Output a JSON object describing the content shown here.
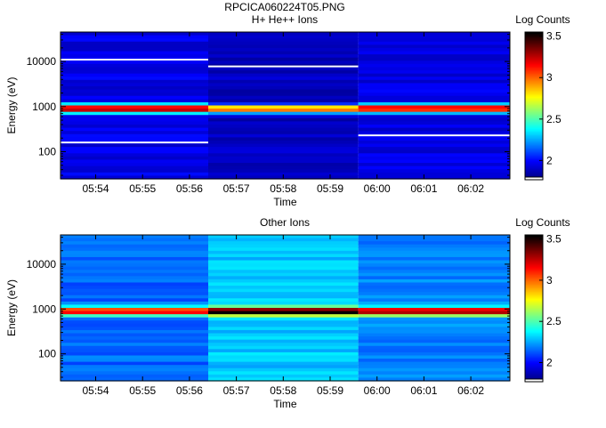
{
  "figure_title": "RPCICA060224T05.PNG",
  "colors": {
    "colormap": [
      "#00008f",
      "#0000ff",
      "#007fff",
      "#00ffff",
      "#7fff7f",
      "#ffff00",
      "#ff7f00",
      "#ff0000",
      "#7f0000",
      "#000000"
    ],
    "reference_lines": "#ffffff"
  },
  "chart_data": [
    {
      "type": "heatmap",
      "title": "H+ He++ Ions",
      "xlabel": "Time",
      "ylabel": "Energy (eV)",
      "x_ticks": [
        "05:54",
        "05:55",
        "05:56",
        "05:57",
        "05:58",
        "05:59",
        "06:00",
        "06:01",
        "06:02"
      ],
      "x_range": [
        "05:53:15",
        "05:62:50"
      ],
      "y_scale": "log",
      "y_ticks": [
        100,
        1000,
        10000
      ],
      "y_range": [
        25,
        45000
      ],
      "colorbar": {
        "label": "Log Counts",
        "ticks": [
          2,
          2.5,
          3,
          3.5
        ],
        "range": [
          1.8,
          3.55
        ]
      },
      "time_segments": [
        {
          "start": "05:53:15",
          "end": "05:56:24",
          "peak_energy_ev": 900,
          "peak_log_counts": 3.4,
          "background_log_counts": 1.95,
          "lines_ev": [
            11000,
            160
          ]
        },
        {
          "start": "05:56:24",
          "end": "05:59:36",
          "peak_energy_ev": 880,
          "peak_log_counts": 3.1,
          "background_log_counts": 1.88,
          "lines_ev": [
            7800
          ]
        },
        {
          "start": "05:59:36",
          "end": "06:02:50",
          "peak_energy_ev": 900,
          "peak_log_counts": 3.3,
          "background_log_counts": 1.95,
          "lines_ev": [
            230
          ]
        }
      ]
    },
    {
      "type": "heatmap",
      "title": "Other Ions",
      "xlabel": "Time",
      "ylabel": "Energy (eV)",
      "x_ticks": [
        "05:54",
        "05:55",
        "05:56",
        "05:57",
        "05:58",
        "05:59",
        "06:00",
        "06:01",
        "06:02"
      ],
      "x_range": [
        "05:53:15",
        "05:62:50"
      ],
      "y_scale": "log",
      "y_ticks": [
        100,
        1000,
        10000
      ],
      "y_range": [
        25,
        45000
      ],
      "colorbar": {
        "label": "Log Counts",
        "ticks": [
          2,
          2.5,
          3,
          3.5
        ],
        "range": [
          1.8,
          3.55
        ]
      },
      "time_segments": [
        {
          "start": "05:53:15",
          "end": "05:56:24",
          "peak_energy_ev": 880,
          "peak_log_counts": 3.3,
          "background_log_counts": 2.15,
          "lines_ev": []
        },
        {
          "start": "05:56:24",
          "end": "05:59:36",
          "peak_energy_ev": 880,
          "peak_log_counts": 3.6,
          "background_log_counts": 2.3,
          "lines_ev": []
        },
        {
          "start": "05:59:36",
          "end": "06:02:50",
          "peak_energy_ev": 880,
          "peak_log_counts": 3.4,
          "background_log_counts": 2.2,
          "lines_ev": []
        }
      ]
    }
  ]
}
